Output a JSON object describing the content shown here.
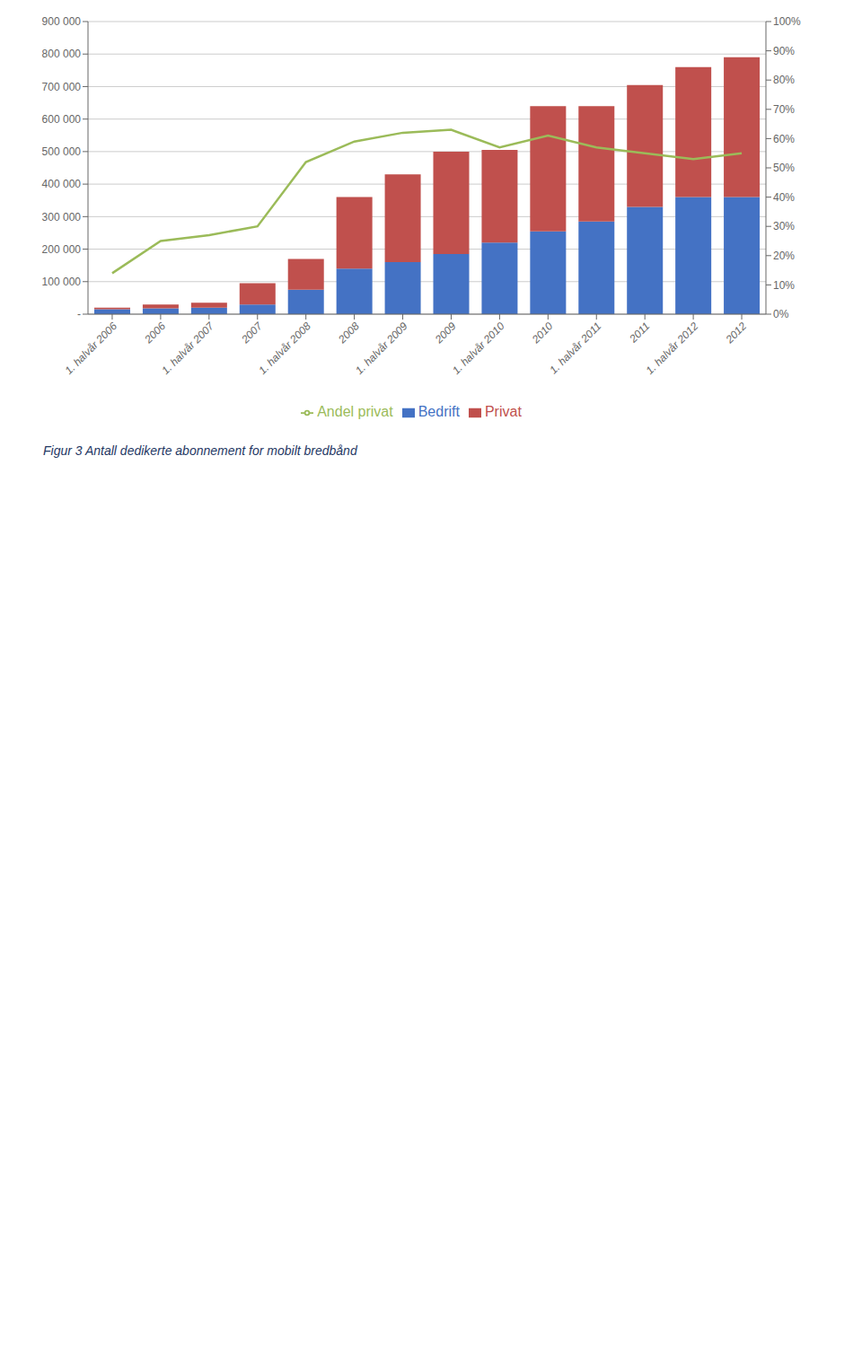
{
  "chart_data": {
    "type": "bar",
    "title": "Figur 3 Antall dedikerte abonnement for mobilt bredbånd",
    "categories": [
      "1. halvår 2006",
      "2006",
      "1. halvår 2007",
      "2007",
      "1. halvår 2008",
      "2008",
      "1. halvår 2009",
      "2009",
      "1. halvår 2010",
      "2010",
      "1. halvår 2011",
      "2011",
      "1. halvår 2012",
      "2012"
    ],
    "stacked": true,
    "grid": true,
    "legend": "bottom",
    "ylim": [
      0,
      900000
    ],
    "yticks": [
      {
        "value": 0,
        "label": "-"
      },
      {
        "value": 100000,
        "label": "100 000"
      },
      {
        "value": 200000,
        "label": "200 000"
      },
      {
        "value": 300000,
        "label": "300 000"
      },
      {
        "value": 400000,
        "label": "400 000"
      },
      {
        "value": 500000,
        "label": "500 000"
      },
      {
        "value": 600000,
        "label": "600 000"
      },
      {
        "value": 700000,
        "label": "700 000"
      },
      {
        "value": 800000,
        "label": "800 000"
      },
      {
        "value": 900000,
        "label": "900 000"
      }
    ],
    "y2lim": [
      0,
      1
    ],
    "y2ticks": [
      {
        "value": 0,
        "label": "0%"
      },
      {
        "value": 0.1,
        "label": "10%"
      },
      {
        "value": 0.2,
        "label": "20%"
      },
      {
        "value": 0.3,
        "label": "30%"
      },
      {
        "value": 0.4,
        "label": "40%"
      },
      {
        "value": 0.5,
        "label": "50%"
      },
      {
        "value": 0.6,
        "label": "60%"
      },
      {
        "value": 0.7,
        "label": "70%"
      },
      {
        "value": 0.8,
        "label": "80%"
      },
      {
        "value": 0.9,
        "label": "90%"
      },
      {
        "value": 1,
        "label": "100%"
      }
    ],
    "series": [
      {
        "name": "Bedrift",
        "color": "#4472C4",
        "values": [
          15000,
          18000,
          20000,
          30000,
          75000,
          140000,
          160000,
          185000,
          220000,
          255000,
          285000,
          330000,
          360000,
          360000
        ]
      },
      {
        "name": "Privat",
        "color": "#C0504D",
        "values": [
          5000,
          12000,
          15000,
          65000,
          95000,
          220000,
          270000,
          315000,
          285000,
          385000,
          355000,
          375000,
          400000,
          430000
        ]
      },
      {
        "name": "Andel privat",
        "color": "#9BBB59",
        "type": "line",
        "axis": "y2",
        "values": [
          0.14,
          0.25,
          0.27,
          0.3,
          0.52,
          0.59,
          0.62,
          0.63,
          0.57,
          0.61,
          0.57,
          0.55,
          0.53,
          0.55
        ]
      }
    ]
  }
}
